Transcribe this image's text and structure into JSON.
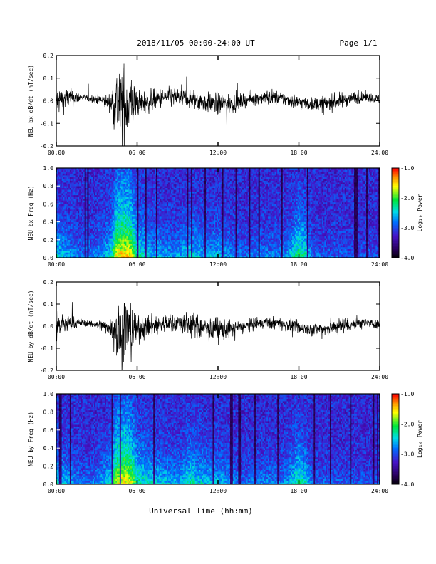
{
  "header": {
    "title": "2018/11/05  00:00-24:00 UT",
    "page": "Page 1/1"
  },
  "footer": {
    "xlabel": "Universal Time (hh:mm)"
  },
  "chart_data": [
    {
      "id": "bx-series",
      "type": "line",
      "ylabel": "NEU bx dB/dt (nT/sec)",
      "xlim": [
        "00:00",
        "24:00"
      ],
      "x_ticks": [
        "00:00",
        "06:00",
        "12:00",
        "18:00",
        "24:00"
      ],
      "ylim": [
        -0.2,
        0.2
      ],
      "y_ticks": [
        "-0.2",
        "-0.1",
        "0.0",
        "0.1",
        "0.2"
      ],
      "color": "#000000",
      "envelope": {
        "hours": [
          0,
          1,
          2,
          3,
          4,
          4.5,
          5,
          5.5,
          6,
          7,
          8,
          9,
          10,
          11,
          12,
          13,
          14,
          15,
          16,
          17,
          18,
          19,
          20,
          21,
          22,
          23,
          24
        ],
        "amplitude": [
          0.1,
          0.06,
          0.02,
          0.03,
          0.05,
          0.25,
          0.25,
          0.2,
          0.08,
          0.07,
          0.06,
          0.06,
          0.07,
          0.06,
          0.07,
          0.06,
          0.04,
          0.04,
          0.05,
          0.04,
          0.05,
          0.04,
          0.05,
          0.05,
          0.04,
          0.03,
          0.03
        ]
      }
    },
    {
      "id": "bx-spectrogram",
      "type": "heatmap",
      "ylabel": "NEU bx Freq (Hz)",
      "xlim": [
        "00:00",
        "24:00"
      ],
      "x_ticks": [
        "00:00",
        "06:00",
        "12:00",
        "18:00",
        "24:00"
      ],
      "ylim": [
        0.0,
        1.0
      ],
      "y_ticks": [
        "0.0",
        "0.2",
        "0.4",
        "0.6",
        "0.8",
        "1.0"
      ],
      "colorbar": {
        "label": "Log₁₀ Power",
        "range": [
          -4.0,
          -1.0
        ],
        "ticks": [
          "-1.0",
          "-2.0",
          "-3.0",
          "-4.0"
        ]
      },
      "activity": {
        "hours": [
          0,
          1,
          2,
          3,
          4,
          4.5,
          5,
          5.5,
          6,
          7,
          8,
          9,
          10,
          11,
          12,
          13,
          14,
          15,
          16,
          17,
          18,
          18.5,
          19,
          20,
          21,
          22,
          23,
          24
        ],
        "level": [
          0.35,
          0.25,
          0.15,
          0.2,
          0.35,
          0.75,
          0.8,
          0.75,
          0.45,
          0.3,
          0.25,
          0.25,
          0.35,
          0.25,
          0.3,
          0.2,
          0.15,
          0.18,
          0.2,
          0.2,
          0.5,
          0.4,
          0.15,
          0.12,
          0.12,
          0.1,
          0.1,
          0.1
        ]
      }
    },
    {
      "id": "by-series",
      "type": "line",
      "ylabel": "NEU by dB/dt (nT/sec)",
      "xlim": [
        "00:00",
        "24:00"
      ],
      "x_ticks": [
        "00:00",
        "06:00",
        "12:00",
        "18:00",
        "24:00"
      ],
      "ylim": [
        -0.2,
        0.2
      ],
      "y_ticks": [
        "-0.2",
        "-0.1",
        "0.0",
        "0.1",
        "0.2"
      ],
      "color": "#000000",
      "envelope": {
        "hours": [
          0,
          1,
          2,
          3,
          4,
          4.5,
          5,
          5.5,
          6,
          7,
          8,
          9,
          10,
          11,
          12,
          13,
          14,
          15,
          16,
          17,
          18,
          19,
          20,
          21,
          22,
          23,
          24
        ],
        "amplitude": [
          0.1,
          0.05,
          0.02,
          0.03,
          0.05,
          0.22,
          0.25,
          0.18,
          0.08,
          0.07,
          0.06,
          0.06,
          0.08,
          0.06,
          0.08,
          0.05,
          0.04,
          0.04,
          0.04,
          0.04,
          0.04,
          0.04,
          0.05,
          0.05,
          0.05,
          0.03,
          0.03
        ]
      }
    },
    {
      "id": "by-spectrogram",
      "type": "heatmap",
      "ylabel": "NEU by Freq (Hz)",
      "xlim": [
        "00:00",
        "24:00"
      ],
      "x_ticks": [
        "00:00",
        "06:00",
        "12:00",
        "18:00",
        "24:00"
      ],
      "ylim": [
        0.0,
        1.0
      ],
      "y_ticks": [
        "0.0",
        "0.2",
        "0.4",
        "0.6",
        "0.8",
        "1.0"
      ],
      "colorbar": {
        "label": "Log₁₀ Power",
        "range": [
          -4.0,
          -1.0
        ],
        "ticks": [
          "-1.0",
          "-2.0",
          "-3.0",
          "-4.0"
        ]
      },
      "activity": {
        "hours": [
          0,
          1,
          2,
          3,
          4,
          4.5,
          5,
          5.5,
          6,
          7,
          8,
          9,
          10,
          11,
          12,
          13,
          14,
          15,
          16,
          17,
          18,
          18.5,
          19,
          20,
          21,
          22,
          23,
          24
        ],
        "level": [
          0.35,
          0.25,
          0.15,
          0.2,
          0.35,
          0.7,
          0.75,
          0.7,
          0.45,
          0.35,
          0.3,
          0.25,
          0.4,
          0.3,
          0.3,
          0.2,
          0.15,
          0.18,
          0.2,
          0.2,
          0.45,
          0.35,
          0.15,
          0.12,
          0.12,
          0.1,
          0.1,
          0.1
        ]
      }
    }
  ]
}
